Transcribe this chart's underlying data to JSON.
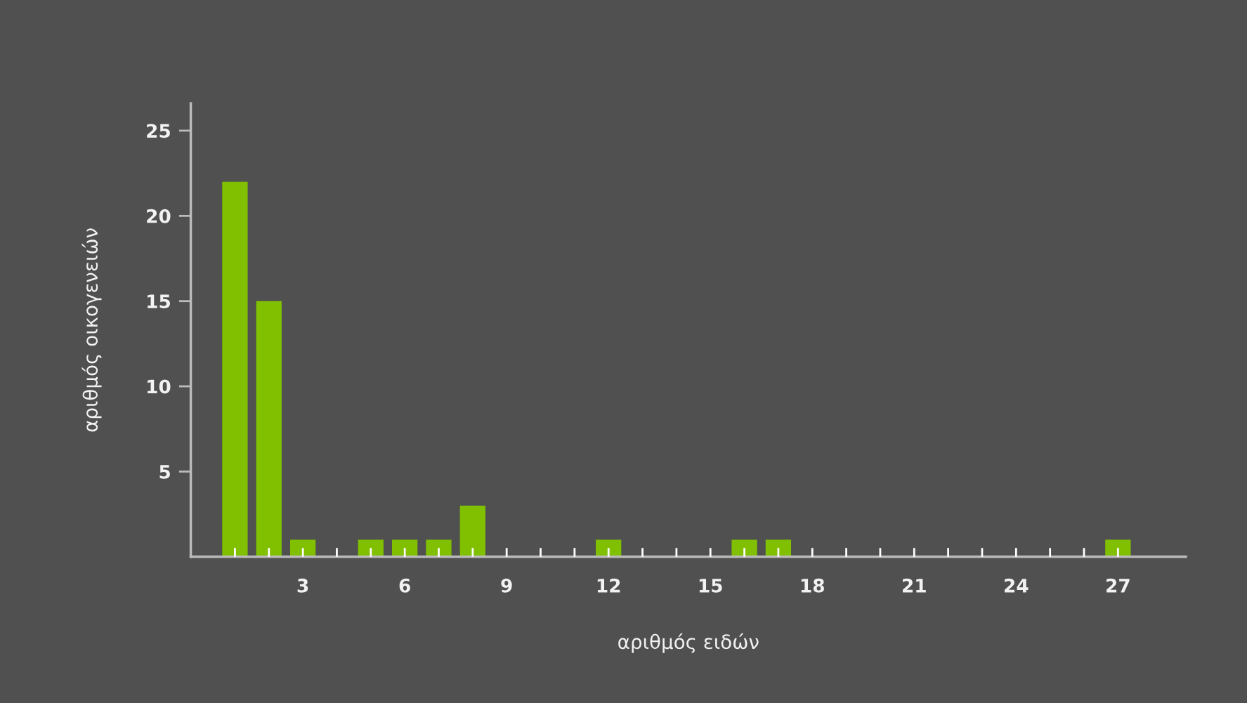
{
  "chart_data": {
    "type": "bar",
    "xlabel": "αριθμός ειδών",
    "ylabel": "αριθμός οικογενειών",
    "x": [
      1,
      2,
      3,
      4,
      5,
      6,
      7,
      8,
      9,
      10,
      11,
      12,
      13,
      14,
      15,
      16,
      17,
      18,
      19,
      20,
      21,
      22,
      23,
      24,
      25,
      26,
      27
    ],
    "values": [
      22,
      15,
      1,
      0,
      1,
      1,
      1,
      3,
      0,
      0,
      0,
      1,
      0,
      0,
      0,
      1,
      1,
      0,
      0,
      0,
      0,
      0,
      0,
      0,
      0,
      0,
      1
    ],
    "color": "#80c000",
    "xlim": [
      -0.3,
      29
    ],
    "xticks": [
      {
        "value": 1,
        "label": null
      },
      {
        "value": 2,
        "label": null
      },
      3,
      {
        "value": 4,
        "label": null
      },
      {
        "value": 5,
        "label": null
      },
      6,
      {
        "value": 7,
        "label": null
      },
      {
        "value": 8,
        "label": null
      },
      9,
      {
        "value": 10,
        "label": null
      },
      {
        "value": 11,
        "label": null
      },
      12,
      {
        "value": 13,
        "label": null
      },
      {
        "value": 14,
        "label": null
      },
      15,
      {
        "value": 16,
        "label": null
      },
      {
        "value": 17,
        "label": null
      },
      18,
      {
        "value": 19,
        "label": null
      },
      {
        "value": 20,
        "label": null
      },
      21,
      {
        "value": 22,
        "label": null
      },
      {
        "value": 23,
        "label": null
      },
      24,
      {
        "value": 25,
        "label": null
      },
      {
        "value": 26,
        "label": null
      },
      27
    ],
    "ylim": [
      0,
      26.6
    ],
    "yticks": [
      5,
      10,
      15,
      20,
      25
    ],
    "grid": false,
    "legend": false
  }
}
